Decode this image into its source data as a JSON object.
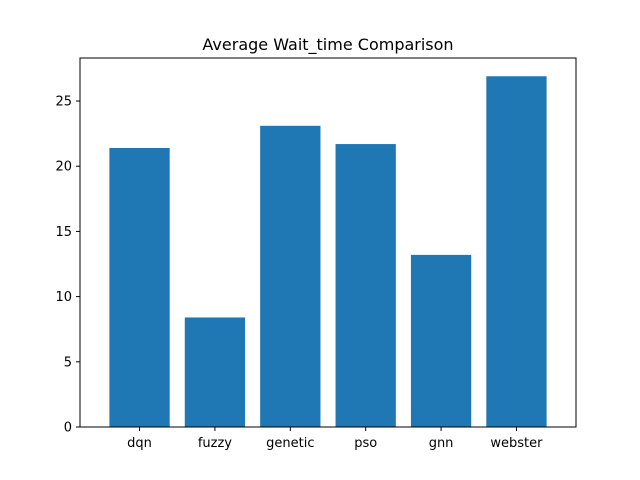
{
  "chart_data": {
    "type": "bar",
    "title": "Average Wait_time Comparison",
    "xlabel": "",
    "ylabel": "",
    "categories": [
      "dqn",
      "fuzzy",
      "genetic",
      "pso",
      "gnn",
      "webster"
    ],
    "values": [
      21.4,
      8.4,
      23.1,
      21.7,
      13.2,
      26.9
    ],
    "ylim": [
      0,
      28.3
    ],
    "yticks": [
      0,
      5,
      10,
      15,
      20,
      25
    ],
    "bar_color": "#1f77b4",
    "grid": false,
    "legend": "none"
  }
}
